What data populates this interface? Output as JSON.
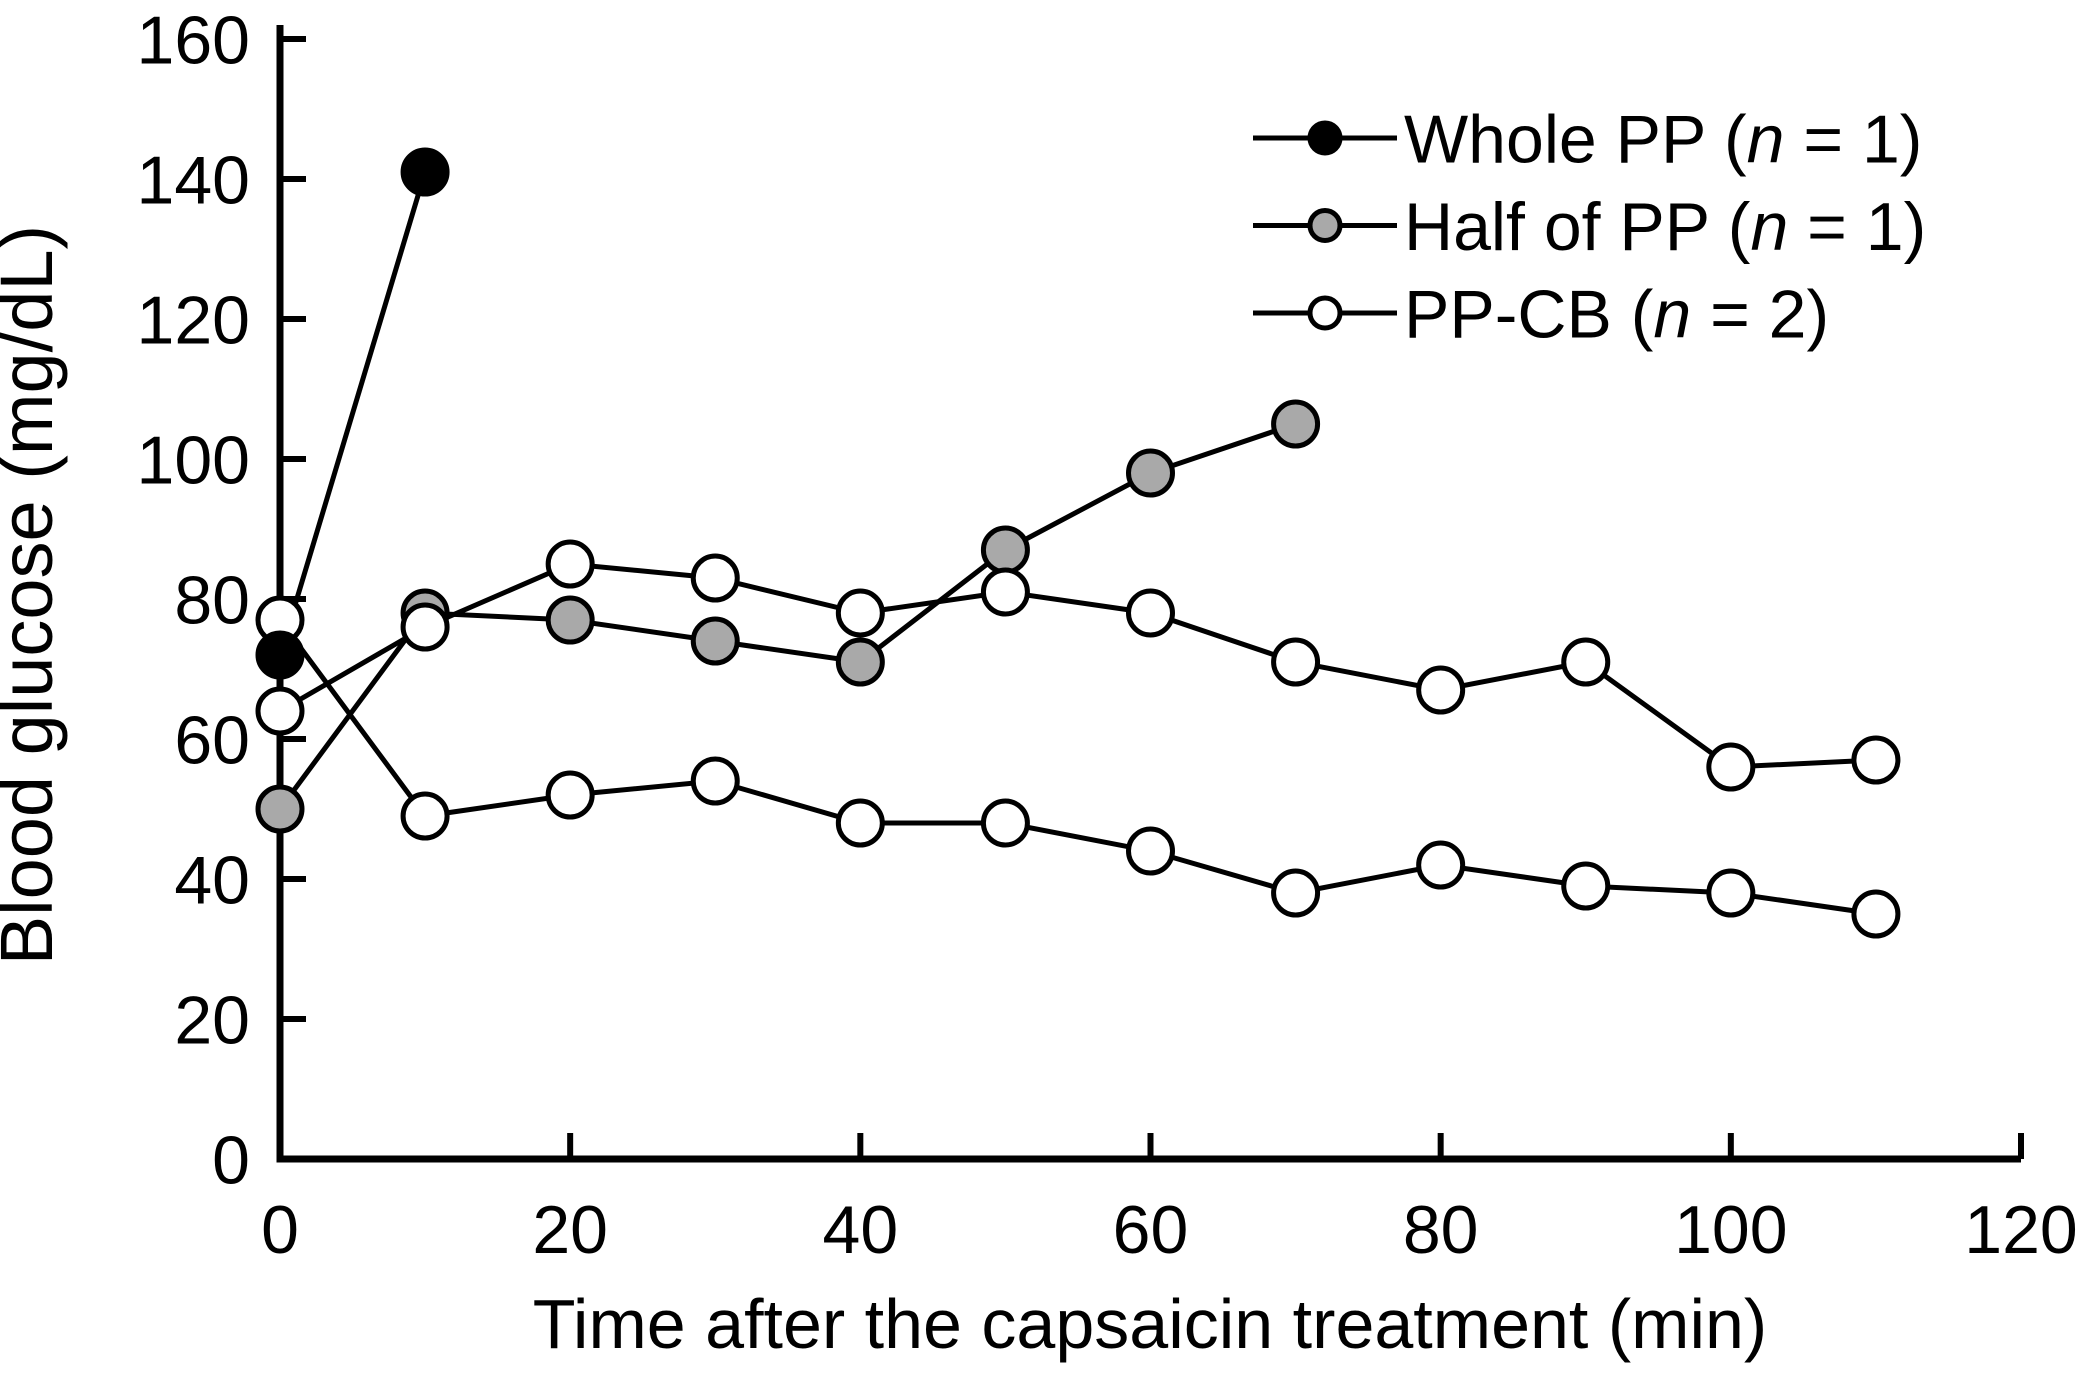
{
  "figure": {
    "background_color": "#ffffff",
    "axis_color": "#000000",
    "gray_marker_color": "#a9a9a9",
    "white_marker_color": "#ffffff",
    "black_marker_color": "#000000"
  },
  "chart_data": {
    "type": "line",
    "title": "",
    "xlabel": "Time after the capsaicin treatment (min)",
    "ylabel": "Blood glucose (mg/dL)",
    "xlim": [
      0,
      120
    ],
    "ylim": [
      0,
      160
    ],
    "xticks": [
      0,
      20,
      40,
      60,
      80,
      100,
      120
    ],
    "yticks": [
      0,
      20,
      40,
      60,
      80,
      100,
      120,
      140,
      160
    ],
    "grid": false,
    "legend_position": "upper-right-inside",
    "series": [
      {
        "name": "Whole PP (n = 1)",
        "marker": "circle",
        "marker_fill": "#000000",
        "line_color": "#000000",
        "z": 4,
        "x": [
          0,
          10
        ],
        "values": [
          72,
          141
        ]
      },
      {
        "name": "Half of PP (n = 1)",
        "marker": "circle",
        "marker_fill": "#a9a9a9",
        "line_color": "#000000",
        "z": 1,
        "x": [
          0,
          10,
          20,
          30,
          40,
          50,
          60,
          70
        ],
        "values": [
          50,
          78,
          77,
          74,
          71,
          87,
          98,
          105
        ]
      },
      {
        "name": "PP-CB (n = 2) line 1",
        "marker": "circle",
        "marker_fill": "#ffffff",
        "line_color": "#000000",
        "z": 2,
        "x": [
          0,
          10,
          20,
          30,
          40,
          50,
          60,
          70,
          80,
          90,
          100,
          110
        ],
        "values": [
          77,
          49,
          52,
          54,
          48,
          48,
          44,
          38,
          42,
          39,
          38,
          35
        ]
      },
      {
        "name": "PP-CB (n = 2) line 2",
        "marker": "circle",
        "marker_fill": "#ffffff",
        "line_color": "#000000",
        "z": 3,
        "x": [
          0,
          10,
          20,
          30,
          40,
          50,
          60,
          70,
          80,
          90,
          100,
          110
        ],
        "values": [
          64,
          76,
          85,
          83,
          78,
          81,
          78,
          71,
          67,
          71,
          56,
          57
        ]
      }
    ],
    "legend": [
      {
        "label": "Whole PP (n = 1)",
        "label_prefix": "Whole PP (",
        "label_italic": "n",
        "label_suffix": " = 1)",
        "marker_fill": "#000000"
      },
      {
        "label": "Half of PP (n = 1)",
        "label_prefix": "Half of PP (",
        "label_italic": "n",
        "label_suffix": " = 1)",
        "marker_fill": "#a9a9a9"
      },
      {
        "label": "PP-CB (n = 2)",
        "label_prefix": "PP-CB (",
        "label_italic": "n",
        "label_suffix": " = 2)",
        "marker_fill": "#ffffff"
      }
    ]
  }
}
